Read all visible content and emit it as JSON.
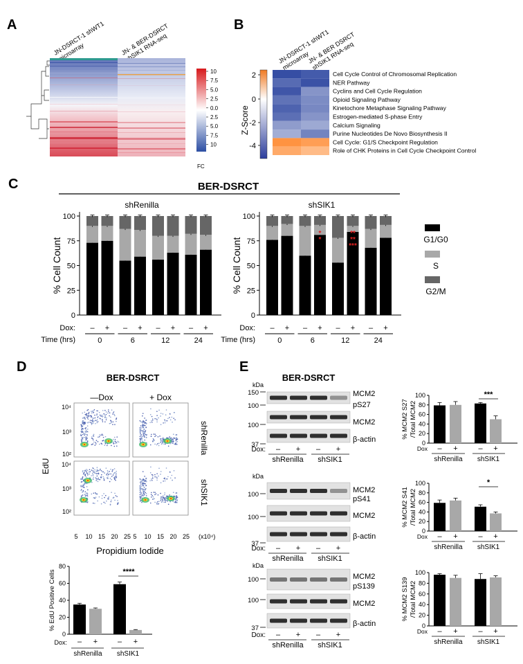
{
  "panels": {
    "A": {
      "letter": "A",
      "col1": [
        "JN-DSRCT-1 shWT1",
        "microarray"
      ],
      "col2": [
        "JN- & BER-DSRCT",
        "shSIK1 RNA-seq"
      ],
      "legend_ticks": [
        "10",
        "7.5",
        "5.0",
        "2.5",
        "0.0",
        "2.5",
        "5.0",
        "7.5",
        "10"
      ],
      "legend_label": "FC",
      "colors": {
        "up": "#d7191c",
        "down": "#2c4ea3",
        "mid": "#ffffff"
      }
    },
    "B": {
      "letter": "B",
      "col1": [
        "JN-DSRCT-1 shWT1",
        "microarray"
      ],
      "col2": [
        "JN- & BER DSRCT",
        "shSIK1 RNA-seq"
      ],
      "scale_label": "Z-Score",
      "scale_ticks": [
        "2",
        "0",
        "-2",
        "-4"
      ],
      "pathways": [
        "Cell Cycle Control of Chromosomal Replication",
        "NER Pathway",
        "Cyclins and Cell Cycle Regulation",
        "Opioid Signaling Pathway",
        "Kinetochore Metaphase Signaling Pathway",
        "Estrogen-mediated S-phase Entry",
        "Calcium Signaling",
        "Purine Nucleotides De Novo Biosynthesis II",
        "Cell Cycle: G1/S Checkpoint Regulation",
        "Role of CHK Proteins in Cell Cycle Checkpoint Control"
      ],
      "zscores": [
        [
          -4.3,
          -4.0
        ],
        [
          -3.6,
          -4.2
        ],
        [
          -4.1,
          -2.6
        ],
        [
          -3.4,
          -2.8
        ],
        [
          -3.8,
          -2.9
        ],
        [
          -3.5,
          -2.6
        ],
        [
          -2.4,
          -2.1
        ],
        [
          -2.0,
          -3.0
        ],
        [
          1.9,
          1.7
        ],
        [
          1.5,
          1.2
        ]
      ]
    },
    "C": {
      "letter": "C",
      "title": "BER-DSRCT",
      "ylabel": "% Cell Count",
      "yticks": [
        "0",
        "25",
        "50",
        "75",
        "100"
      ],
      "dox_label": "Dox:",
      "time_label": "Time (hrs)",
      "dox_marks": [
        "–",
        "+"
      ],
      "times": [
        "0",
        "6",
        "12",
        "24"
      ],
      "legend": [
        "G1/G0",
        "S",
        "G2/M"
      ]
    },
    "D": {
      "letter": "D",
      "title": "BER-DSRCT",
      "col_labels": [
        "—Dox",
        "+ Dox"
      ],
      "row_labels": [
        "shRenilla",
        "shSIK1"
      ],
      "ylabel": "EdU",
      "xlabel": "Propidium Iodide",
      "xunit": "(x10⁴)",
      "yticks": [
        "10⁴",
        "10³",
        "10²"
      ],
      "xticks": [
        "5",
        "10",
        "15",
        "20",
        "25"
      ],
      "bar_ylabel": "% EdU Positive Cells",
      "bar_yticks": [
        "0",
        "20",
        "40",
        "60",
        "80"
      ],
      "sig": "****",
      "dox_label": "Dox:",
      "dox_marks": [
        "–",
        "+"
      ],
      "groups": [
        "shRenilla",
        "shSIK1"
      ]
    },
    "E": {
      "letter": "E",
      "title": "BER-DSRCT",
      "kda": "kDa",
      "dox_label": "Dox:",
      "dox_marks": [
        "–",
        "+"
      ],
      "groups": [
        "shRenilla",
        "shSIK1"
      ],
      "blots": [
        {
          "mw": [
            "150",
            "100",
            "100",
            "37"
          ],
          "labels": [
            "MCM2",
            "pS27",
            "MCM2",
            "β-actin"
          ],
          "ylabel": [
            "% MCM2 S27",
            "/Total MCM2"
          ],
          "sig": "***"
        },
        {
          "mw": [
            "100",
            "100",
            "37"
          ],
          "labels": [
            "MCM2",
            "pS41",
            "MCM2",
            "β-actin"
          ],
          "ylabel": [
            "% MCM2 S41",
            "/Total MCM2"
          ],
          "sig": "*"
        },
        {
          "mw": [
            "100",
            "100",
            "37"
          ],
          "labels": [
            "MCM2",
            "pS139",
            "MCM2",
            "β-actin"
          ],
          "ylabel": [
            "% MCM2 S139",
            "/Total MCM2"
          ],
          "sig": ""
        }
      ],
      "bar_yticks": [
        "0",
        "20",
        "40",
        "60",
        "80",
        "100"
      ]
    }
  },
  "chart_data": [
    {
      "type": "bar",
      "id": "C-shRenilla",
      "title": "shRenilla",
      "stacked": true,
      "categories": [
        "0 –",
        "0 +",
        "6 –",
        "6 +",
        "12 –",
        "12 +",
        "24 –",
        "24 +"
      ],
      "ylabel": "% Cell Count",
      "ylim": [
        0,
        100
      ],
      "series": [
        {
          "name": "G1/G0",
          "values": [
            73,
            75,
            55,
            59,
            56,
            63,
            61,
            66
          ]
        },
        {
          "name": "S",
          "values": [
            17,
            15,
            32,
            27,
            24,
            17,
            21,
            15
          ]
        },
        {
          "name": "G2/M",
          "values": [
            10,
            10,
            13,
            14,
            20,
            20,
            18,
            19
          ]
        }
      ]
    },
    {
      "type": "bar",
      "id": "C-shSIK1",
      "title": "shSIK1",
      "stacked": true,
      "categories": [
        "0 –",
        "0 +",
        "6 –",
        "6 +",
        "12 –",
        "12 +",
        "24 –",
        "24 +"
      ],
      "ylabel": "% Cell Count",
      "ylim": [
        0,
        100
      ],
      "annotations": [
        {
          "category": "6 +",
          "marks": [
            "*",
            "*"
          ]
        },
        {
          "category": "12 +",
          "marks": [
            "**",
            "**",
            "***"
          ]
        }
      ],
      "series": [
        {
          "name": "G1/G0",
          "values": [
            76,
            80,
            60,
            81,
            53,
            84,
            68,
            78
          ]
        },
        {
          "name": "S",
          "values": [
            14,
            12,
            30,
            10,
            25,
            6,
            19,
            13
          ]
        },
        {
          "name": "G2/M",
          "values": [
            10,
            8,
            10,
            9,
            22,
            10,
            13,
            9
          ]
        }
      ]
    },
    {
      "type": "bar",
      "id": "D-edu",
      "ylabel": "% EdU Positive Cells",
      "ylim": [
        0,
        80
      ],
      "categories": [
        "shRenilla –",
        "shRenilla +",
        "shSIK1 –",
        "shSIK1 +"
      ],
      "values": [
        35,
        30,
        59,
        5
      ],
      "errors": [
        1.5,
        1,
        2.5,
        0.5
      ]
    },
    {
      "type": "bar",
      "id": "E-S27",
      "ylabel": "% MCM2 S27/Total MCM2",
      "ylim": [
        0,
        100
      ],
      "categories": [
        "shRenilla –",
        "shRenilla +",
        "shSIK1 –",
        "shSIK1 +"
      ],
      "values": [
        79,
        80,
        83,
        50
      ],
      "errors": [
        6,
        7,
        2,
        7
      ]
    },
    {
      "type": "bar",
      "id": "E-S41",
      "ylabel": "% MCM2 S41/Total MCM2",
      "ylim": [
        0,
        100
      ],
      "categories": [
        "shRenilla –",
        "shRenilla +",
        "shSIK1 –",
        "shSIK1 +"
      ],
      "values": [
        59,
        64,
        51,
        37
      ],
      "errors": [
        6,
        5,
        4,
        3
      ]
    },
    {
      "type": "bar",
      "id": "E-S139",
      "ylabel": "% MCM2 S139/Total MCM2",
      "ylim": [
        0,
        100
      ],
      "categories": [
        "shRenilla –",
        "shRenilla +",
        "shSIK1 –",
        "shSIK1 +"
      ],
      "values": [
        96,
        90,
        88,
        91
      ],
      "errors": [
        2,
        5,
        10,
        3
      ]
    }
  ]
}
